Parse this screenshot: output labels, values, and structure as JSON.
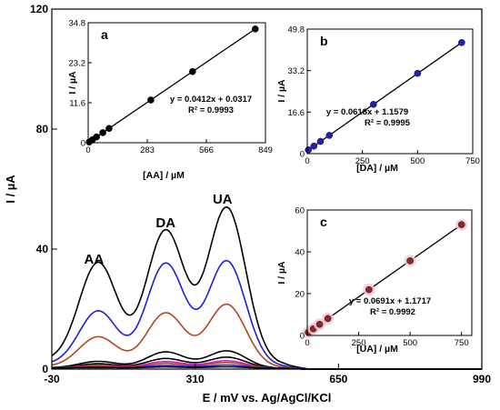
{
  "chart_data": {
    "main": {
      "type": "line",
      "xlabel": "E / mV vs. Ag/AgCl/KCl",
      "ylabel": "I / µA",
      "xlim": [
        -30,
        990
      ],
      "ylim": [
        0,
        120
      ],
      "xticks": [
        "-30",
        "310",
        "650",
        "990"
      ],
      "yticks": [
        "0",
        "40",
        "80",
        "120"
      ],
      "annotations": [
        {
          "text": "AA",
          "x": 70,
          "y": 34
        },
        {
          "text": "DA",
          "x": 240,
          "y": 46
        },
        {
          "text": "UA",
          "x": 375,
          "y": 54
        }
      ],
      "peaks": {
        "x": [
          80,
          240,
          385
        ],
        "widths": [
          45,
          45,
          45
        ]
      },
      "baseline": {
        "start": 2.8,
        "end": 0.3
      },
      "series": [
        {
          "color": "#000000",
          "values": [
            33,
            44,
            52
          ]
        },
        {
          "color": "#1f1fd6",
          "values": [
            18,
            34,
            35
          ]
        },
        {
          "color": "#b7451f",
          "values": [
            10,
            18,
            21
          ]
        },
        {
          "color": "#000000",
          "values": [
            2.2,
            5.4,
            5.8
          ]
        },
        {
          "color": "#000000",
          "values": [
            1.4,
            3.2,
            3.7
          ]
        },
        {
          "color": "#d020c0",
          "values": [
            0.9,
            2.2,
            2.5
          ]
        },
        {
          "color": "#b7451f",
          "values": [
            0.6,
            1.6,
            1.9
          ]
        },
        {
          "color": "#1f1fd6",
          "values": [
            0.3,
            0.9,
            1.1
          ]
        },
        {
          "color": "#000000",
          "values": [
            0.1,
            0.4,
            0.5
          ]
        }
      ]
    },
    "insets": [
      {
        "id": "a",
        "type": "scatter",
        "panel_label": "a",
        "xlabel": "[AA] / µM",
        "ylabel": "I / µA",
        "xlim": [
          0,
          849
        ],
        "ylim": [
          0,
          34.8
        ],
        "xticks": [
          0,
          283,
          566,
          849
        ],
        "xtick_labels": [
          "0",
          "283",
          "566",
          "849"
        ],
        "yticks": [
          0,
          11.6,
          23.2,
          34.8
        ],
        "ytick_labels": [
          "0",
          "11.6",
          "23.2",
          "34.8"
        ],
        "marker_color": "#000000",
        "x": [
          5,
          20,
          40,
          70,
          100,
          300,
          500,
          800
        ],
        "y": [
          0.2,
          0.86,
          1.68,
          2.92,
          4.15,
          12.39,
          20.63,
          32.99
        ],
        "equation": "y = 0.0412x + 0.0317",
        "r2": "R² = 0.9993",
        "fit": {
          "slope": 0.0412,
          "intercept": 0.0317
        }
      },
      {
        "id": "b",
        "type": "scatter",
        "panel_label": "b",
        "xlabel": "[DA] / µM",
        "ylabel": "I / µA",
        "xlim": [
          0,
          750
        ],
        "ylim": [
          0,
          49.8
        ],
        "xticks": [
          0,
          250,
          500,
          750
        ],
        "xtick_labels": [
          "0",
          "250",
          "500",
          "750"
        ],
        "yticks": [
          0,
          16.6,
          33.2,
          49.8
        ],
        "ytick_labels": [
          "0",
          "16.6",
          "33.2",
          "49.8"
        ],
        "marker_color": "#1f1fbf",
        "x": [
          5,
          30,
          60,
          100,
          300,
          500,
          700
        ],
        "y": [
          1.5,
          3.0,
          4.9,
          7.3,
          19.7,
          32.1,
          44.4
        ],
        "equation": "y = 0.0618x + 1.1579",
        "r2": "R² = 0.9995",
        "fit": {
          "slope": 0.0618,
          "intercept": 1.1579
        }
      },
      {
        "id": "c",
        "type": "scatter",
        "panel_label": "c",
        "xlabel": "[UA] / µM",
        "ylabel": "I / µA",
        "xlim": [
          0,
          800
        ],
        "ylim": [
          0,
          60
        ],
        "xticks": [
          0,
          250,
          500,
          750
        ],
        "xtick_labels": [
          "0",
          "250",
          "500",
          "750"
        ],
        "yticks": [
          0,
          20,
          40,
          60
        ],
        "ytick_labels": [
          "0",
          "20",
          "40",
          "60"
        ],
        "marker_color": "#8a2a1a",
        "x": [
          5,
          30,
          60,
          100,
          300,
          500,
          750
        ],
        "y": [
          1.5,
          3.2,
          5.3,
          8.1,
          21.9,
          35.7,
          53.0
        ],
        "equation": "y = 0.0691x + 1.1717",
        "r2": "R² = 0.9992",
        "fit": {
          "slope": 0.0691,
          "intercept": 1.1717
        }
      }
    ]
  }
}
